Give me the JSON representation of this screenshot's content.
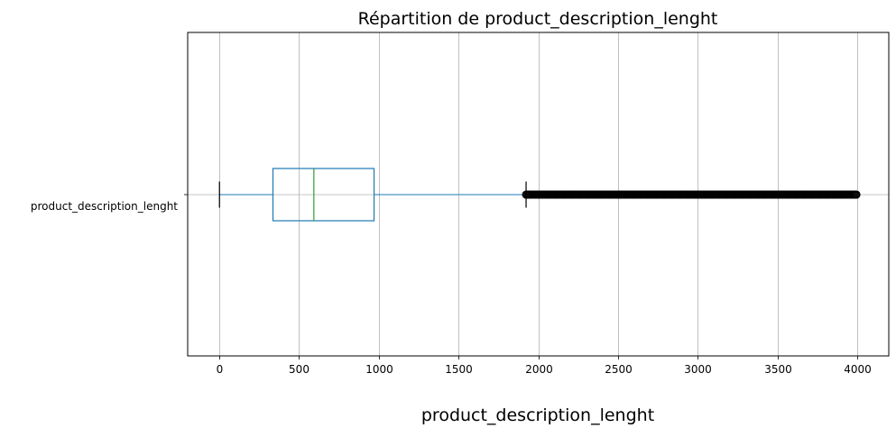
{
  "chart_data": {
    "type": "boxplot",
    "orientation": "horizontal",
    "title": "Répartition de product_description_lenght",
    "xlabel": "product_description_lenght",
    "ylabel": "",
    "category": "product_description_lenght",
    "xlim": [
      -195,
      4195
    ],
    "xticks": [
      0,
      500,
      1000,
      1500,
      2000,
      2500,
      3000,
      3500,
      4000
    ],
    "grid": true,
    "box": {
      "whisker_low": 4,
      "q1": 339,
      "median": 595,
      "q3": 972,
      "whisker_high": 1924,
      "outlier_range": [
        1924,
        3992
      ]
    },
    "colors": {
      "box": "#1f77b4",
      "median": "#2ca02c",
      "whisker": "#1f77b4",
      "cap": "#000000",
      "outlier": "#000000",
      "grid": "#b0b0b0"
    }
  }
}
